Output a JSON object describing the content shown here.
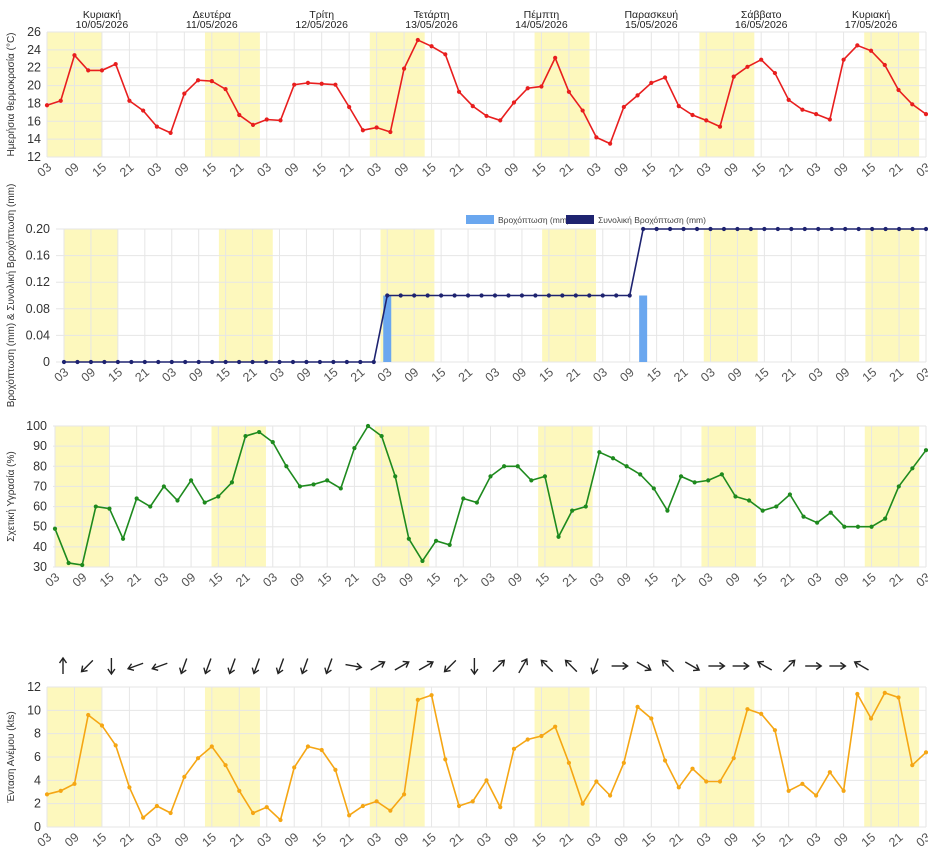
{
  "colors": {
    "night_band": "#fdf8bd",
    "grid": "#e6e6e6",
    "axis_text": "#444444",
    "temperature": "#e81e1e",
    "precip_bar": "#6aa7ef",
    "precip_total": "#1e2370",
    "humidity": "#1e8a1e",
    "wind": "#f5a614",
    "arrow": "#222222"
  },
  "days": [
    {
      "name": "Κυριακή",
      "date": "10/05/2026"
    },
    {
      "name": "Δευτέρα",
      "date": "11/05/2026"
    },
    {
      "name": "Τρίτη",
      "date": "12/05/2026"
    },
    {
      "name": "Τετάρτη",
      "date": "13/05/2026"
    },
    {
      "name": "Πέμπτη",
      "date": "14/05/2026"
    },
    {
      "name": "Παρασκευή",
      "date": "15/05/2026"
    },
    {
      "name": "Σάββατο",
      "date": "16/05/2026"
    },
    {
      "name": "Κυριακή",
      "date": "17/05/2026"
    }
  ],
  "chart_data": [
    {
      "id": "temperature",
      "type": "line",
      "ylabel": "Ημερήσια θερμοκρασία (°C)",
      "ylim": [
        12,
        26
      ],
      "yticks": [
        "12",
        "14",
        "16",
        "18",
        "20",
        "22",
        "24",
        "26"
      ],
      "x_tick_labels": [
        "03",
        "09",
        "15",
        "21",
        "03",
        "09",
        "15",
        "21",
        "03",
        "09",
        "15",
        "21",
        "03",
        "09",
        "15",
        "21",
        "03",
        "09",
        "15",
        "21",
        "03",
        "09",
        "15",
        "21",
        "03",
        "09",
        "15",
        "21",
        "03",
        "09",
        "15",
        "21",
        "03"
      ],
      "series": [
        {
          "values": [
            17.8,
            18.3,
            23.4,
            21.7,
            21.7,
            22.4,
            18.3,
            17.2,
            15.4,
            14.7,
            19.1,
            20.6,
            20.5,
            19.6,
            16.7,
            15.6,
            16.2,
            16.1,
            20.1,
            20.3,
            20.2,
            20.1,
            17.6,
            15.0,
            15.3,
            14.8,
            21.9,
            25.1,
            24.4,
            23.5,
            19.3,
            17.7,
            16.6,
            16.1,
            18.1,
            19.7,
            19.9,
            23.1,
            19.3,
            17.2,
            14.2,
            13.5,
            17.6,
            18.9,
            20.3,
            20.9,
            17.7,
            16.7,
            16.1,
            15.4,
            21.0,
            22.1,
            22.9,
            21.4,
            18.4,
            17.3,
            16.8,
            16.2,
            22.9,
            24.5,
            23.9,
            22.3,
            19.5,
            17.9,
            16.8
          ]
        }
      ]
    },
    {
      "id": "precipitation",
      "type": "bar+line",
      "ylabel": "Βροχόπτωση (mm) & Συνολική Βροχόπτωση (mm)",
      "ylim": [
        0,
        0.2
      ],
      "yticks": [
        "0",
        "0.04",
        "0.08",
        "0.12",
        "0.16",
        "0.20"
      ],
      "x_tick_labels": [
        "03",
        "09",
        "15",
        "21",
        "03",
        "09",
        "15",
        "21",
        "03",
        "09",
        "15",
        "21",
        "03",
        "09",
        "15",
        "21",
        "03",
        "09",
        "15",
        "21",
        "03",
        "09",
        "15",
        "21",
        "03",
        "09",
        "15",
        "21",
        "03",
        "09",
        "15",
        "21",
        "03"
      ],
      "series": [
        {
          "name": "Βροχόπτωση (mm)",
          "type": "bar",
          "bars": [
            {
              "step": 24,
              "value": 0.1
            },
            {
              "step": 43,
              "value": 0.1
            }
          ]
        },
        {
          "name": "Συνολική Βροχόπτωση (mm)",
          "type": "line",
          "change_steps": [
            24,
            43
          ],
          "values_after": [
            0.0,
            0.1,
            0.2
          ]
        }
      ]
    },
    {
      "id": "humidity",
      "type": "line",
      "ylabel": "Σχετική Υγρασία (%)",
      "ylim": [
        30,
        100
      ],
      "yticks": [
        "30",
        "40",
        "50",
        "60",
        "70",
        "80",
        "90",
        "100"
      ],
      "x_tick_labels": [
        "03",
        "09",
        "15",
        "21",
        "03",
        "09",
        "15",
        "21",
        "03",
        "09",
        "15",
        "21",
        "03",
        "09",
        "15",
        "21",
        "03",
        "09",
        "15",
        "21",
        "03",
        "09",
        "15",
        "21",
        "03",
        "09",
        "15",
        "21",
        "03",
        "09",
        "15",
        "21",
        "03"
      ],
      "series": [
        {
          "values": [
            49,
            32,
            31,
            60,
            59,
            44,
            64,
            60,
            70,
            63,
            73,
            62,
            65,
            72,
            95,
            97,
            92,
            80,
            70,
            71,
            73,
            69,
            89,
            100,
            95,
            75,
            44,
            33,
            43,
            41,
            64,
            62,
            75,
            80,
            80,
            73,
            75,
            45,
            58,
            60,
            87,
            84,
            80,
            76,
            69,
            58,
            75,
            72,
            73,
            76,
            65,
            63,
            58,
            60,
            66,
            55,
            52,
            57,
            50,
            50,
            50,
            54,
            70,
            79,
            88
          ]
        }
      ]
    },
    {
      "id": "wind",
      "type": "line",
      "ylabel": "Ένταση Ανέμου (kts)",
      "ylim": [
        0,
        12
      ],
      "yticks": [
        "0",
        "2",
        "4",
        "6",
        "8",
        "10",
        "12"
      ],
      "x_tick_labels": [
        "03",
        "09",
        "15",
        "21",
        "03",
        "09",
        "15",
        "21",
        "03",
        "09",
        "15",
        "21",
        "03",
        "09",
        "15",
        "21",
        "03",
        "09",
        "15",
        "21",
        "03",
        "09",
        "15",
        "21",
        "03",
        "09",
        "15",
        "21",
        "03",
        "09",
        "15",
        "21",
        "03"
      ],
      "series": [
        {
          "values": [
            2.8,
            3.1,
            3.7,
            9.6,
            8.7,
            7.0,
            3.4,
            0.8,
            1.8,
            1.2,
            4.3,
            5.9,
            6.9,
            5.3,
            3.1,
            1.2,
            1.7,
            0.6,
            5.1,
            6.9,
            6.6,
            4.9,
            1.0,
            1.8,
            2.2,
            1.4,
            2.8,
            10.9,
            11.3,
            5.8,
            1.8,
            2.2,
            4.0,
            1.7,
            6.7,
            7.5,
            7.8,
            8.6,
            5.5,
            2.0,
            3.9,
            2.7,
            5.5,
            10.3,
            9.3,
            5.7,
            3.4,
            5.0,
            3.9,
            3.9,
            5.9,
            10.1,
            9.7,
            8.3,
            3.1,
            3.7,
            2.7,
            4.7,
            3.1,
            11.4,
            9.3,
            11.5,
            11.1,
            5.3,
            6.4
          ]
        }
      ],
      "wind_arrow_directions_deg": [
        0,
        225,
        180,
        250,
        250,
        200,
        200,
        200,
        200,
        200,
        200,
        200,
        100,
        60,
        60,
        60,
        225,
        180,
        45,
        30,
        315,
        315,
        200,
        90,
        120,
        315,
        120,
        90,
        90,
        300,
        45,
        90,
        90,
        300
      ]
    }
  ]
}
